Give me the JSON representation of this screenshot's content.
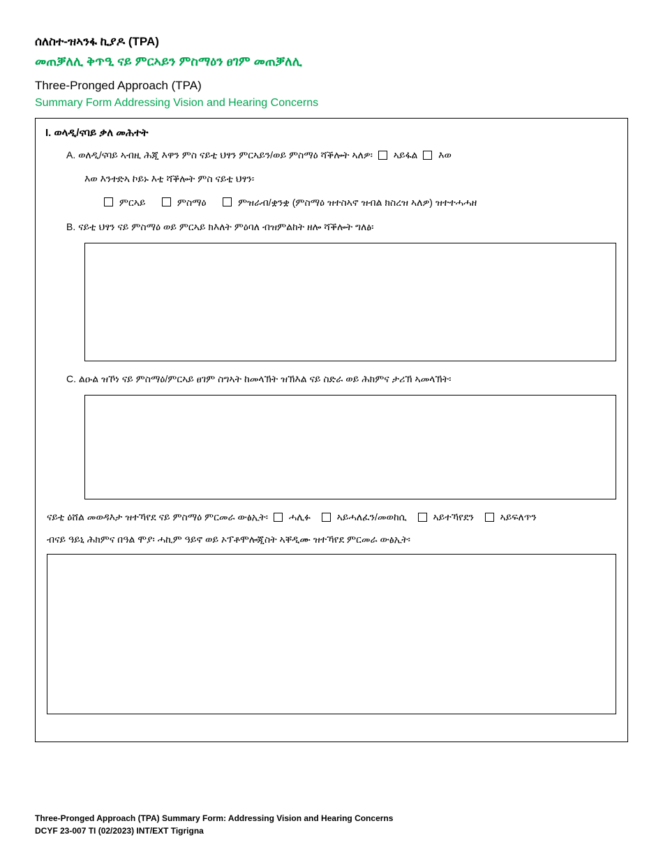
{
  "header": {
    "title_am_1": "ሰለስተ-ዝኣንፋ ኪያዶ (TPA)",
    "title_am_2": "መጠቓለሊ ቅጥዒ ናይ ምርኣይን ምስማዕን ፀገም መጠቓለሊ",
    "title_en_1": "Three-Pronged Approach (TPA)",
    "title_en_2": "Summary Form Addressing Vision and Hearing Concerns"
  },
  "section1": {
    "heading": "I.  ወላዲ/ናባይ ቃለ መሕተት",
    "qA_prefix": "A.  ወለዲ/ናባይ ኣብዚ ሕጂ እዋን ምስ ናይቲ ህፃን ምርኣይን/ወይ ምስማዕ ሻቕሎት ኣለዎ፡",
    "qA_opt1": "ኣይፋል",
    "qA_opt2": "እወ",
    "qA_sub": "እወ እንተድኣ ኮይኑ እቲ ሻቕሎት ምስ ናይቲ ህፃን፡",
    "qA_cb1": "ምርኣይ",
    "qA_cb2": "ምስማዕ",
    "qA_cb3": "ምዝራብ/ቋንቋ (ምስማዕ ዝተስኣኖ ዝብል ክስረዝ ኣለዎ) ዝተተሓሓዘ",
    "qB": "B.  ናይቲ ህፃን ናይ ምስማዕ ወይ ምርኣይ ክእለት ምዕባለ ብዝምልከት ዘሎ ሻቕሎት ግለፅ፡",
    "qC": "C.  ልዑል ዝኾነ ናይ ምስማዕ/ምርኣይ ፀገም ስግኣት ከመላኽት ዝኽእል ናይ ስድራ ወይ ሕክምና ታሪኽ ኣመላኽት፡"
  },
  "results": {
    "line1_prefix": "ናይቲ ዕሸል መወዳእታ ዝተኻየደ ናይ ምስማዕ ምርመራ ውፅኢት፡",
    "opt1": "ሓሊፉ",
    "opt2": "ኣይሓለፈን/መወከሲ",
    "opt3": "ኣይተኻየደን",
    "opt4": "ኣይፍለጥን",
    "line2": "ብናይ ዓይኒ ሕክምና በዓል ሞያ፡ ሓኪም ዓይኖ ወይ ኦፕቶሞሎጂስት ኣቐዲሙ ዝተኻየደ ምርመራ ውፅኢት፡"
  },
  "footer": {
    "line1": "Three-Pronged Approach (TPA) Summary Form: Addressing Vision and Hearing Concerns",
    "line2": "DCYF 23-007 TI (02/2023) INT/EXT Tigrigna"
  }
}
